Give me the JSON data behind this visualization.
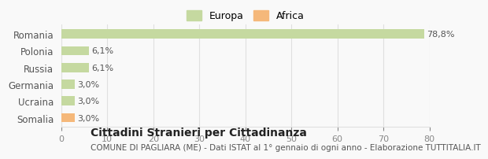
{
  "categories": [
    "Romania",
    "Polonia",
    "Russia",
    "Germania",
    "Ucraina",
    "Somalia"
  ],
  "values": [
    78.8,
    6.1,
    6.1,
    3.0,
    3.0,
    3.0
  ],
  "labels": [
    "78,8%",
    "6,1%",
    "6,1%",
    "3,0%",
    "3,0%",
    "3,0%"
  ],
  "colors": [
    "#c5d9a0",
    "#c5d9a0",
    "#c5d9a0",
    "#c5d9a0",
    "#c5d9a0",
    "#f5b87a"
  ],
  "legend": [
    {
      "label": "Europa",
      "color": "#c5d9a0"
    },
    {
      "label": "Africa",
      "color": "#f5b87a"
    }
  ],
  "xlim": [
    0,
    80
  ],
  "xticks": [
    0,
    10,
    20,
    30,
    40,
    50,
    60,
    70,
    80
  ],
  "title": "Cittadini Stranieri per Cittadinanza",
  "subtitle": "COMUNE DI PAGLIARA (ME) - Dati ISTAT al 1° gennaio di ogni anno - Elaborazione TUTTITALIA.IT",
  "bg_color": "#f9f9f9",
  "grid_color": "#e0e0e0",
  "bar_height": 0.55
}
